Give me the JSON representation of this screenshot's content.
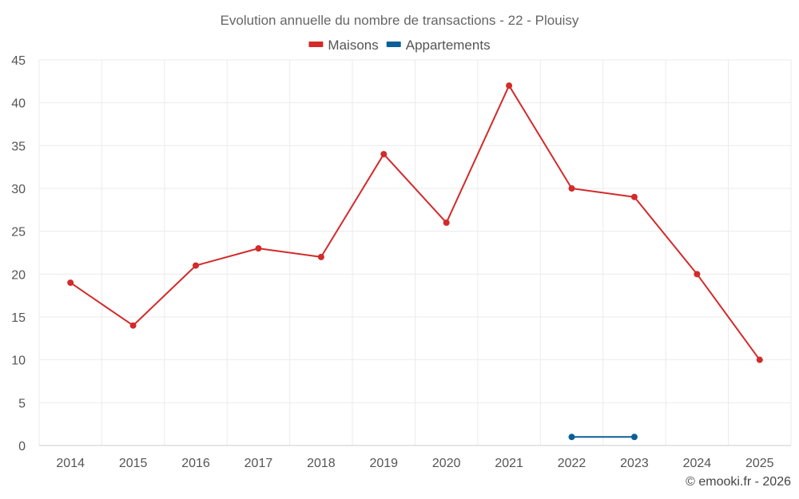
{
  "chart_data": {
    "type": "line",
    "title": "Evolution annuelle du nombre de transactions - 22 - Plouisy",
    "categories": [
      "2014",
      "2015",
      "2016",
      "2017",
      "2018",
      "2019",
      "2020",
      "2021",
      "2022",
      "2023",
      "2024",
      "2025"
    ],
    "series": [
      {
        "name": "Maisons",
        "color": "#d32a2a",
        "values": [
          19,
          14,
          21,
          23,
          22,
          34,
          26,
          42,
          30,
          29,
          20,
          10
        ]
      },
      {
        "name": "Appartements",
        "color": "#0b5f98",
        "values": [
          null,
          null,
          null,
          null,
          null,
          null,
          null,
          null,
          1,
          1,
          null,
          null
        ]
      }
    ],
    "ylim": [
      0,
      45
    ],
    "yticks": [
      0,
      5,
      10,
      15,
      20,
      25,
      30,
      35,
      40,
      45
    ],
    "xlabel": "",
    "ylabel": "",
    "legend": "top-center",
    "grid": true
  },
  "credit": "© emooki.fr - 2026"
}
